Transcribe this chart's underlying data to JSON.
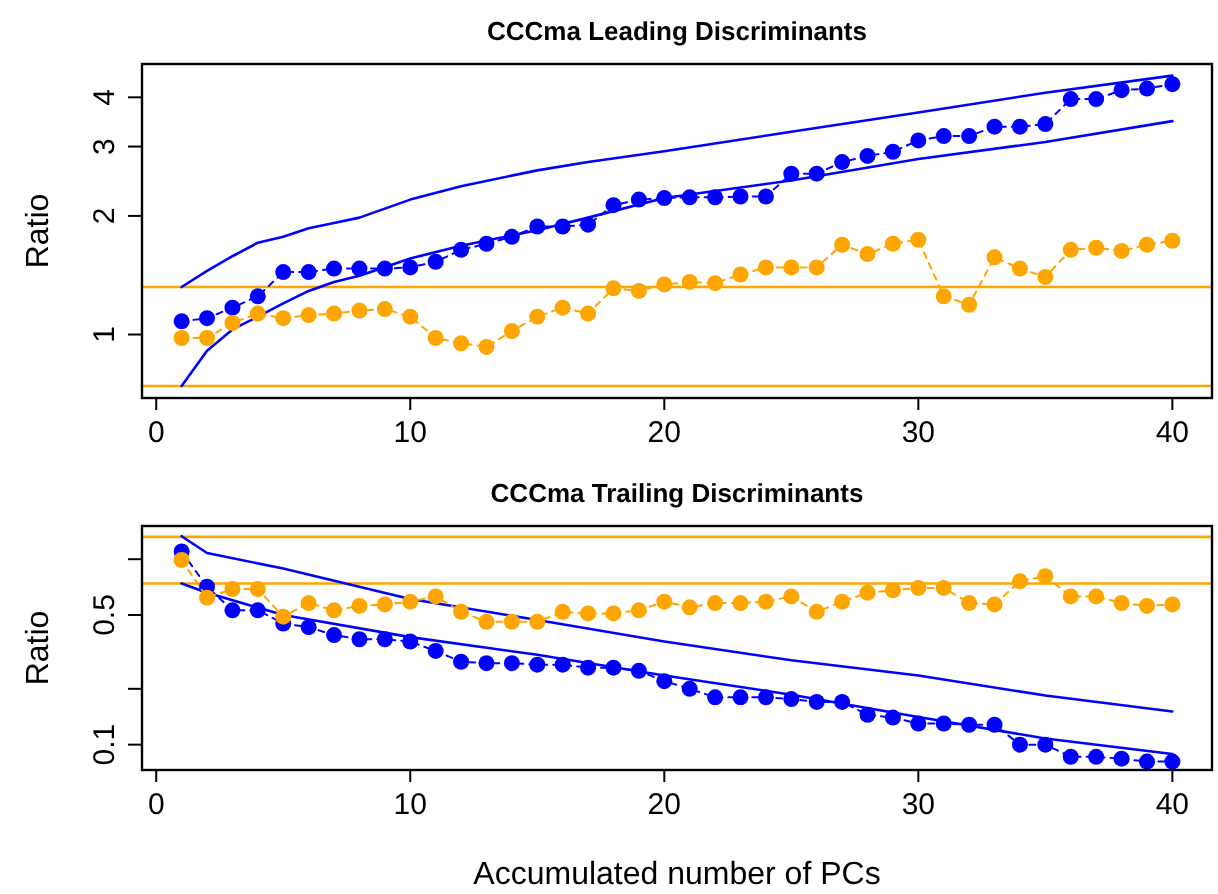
{
  "chart_data": [
    {
      "type": "line",
      "title": "CCCma Leading Discriminants",
      "ylabel": "Ratio",
      "log": "y",
      "grid": false,
      "xlim": [
        -0.56,
        41.56
      ],
      "xticks": [
        0,
        10,
        20,
        30,
        40
      ],
      "ylim": [
        0.69,
        4.86
      ],
      "yticks": [
        1,
        2,
        3,
        4
      ],
      "ref_lines": [
        {
          "axis": "y",
          "value": 1.32,
          "color": "#ffa500"
        },
        {
          "axis": "y",
          "value": 0.74,
          "color": "#ffa500"
        }
      ],
      "series": [
        {
          "color": "#0000ff",
          "marker": "none",
          "line_style": "solid",
          "x": [
            1,
            2,
            3,
            4,
            5,
            6,
            7,
            8,
            10,
            12,
            15,
            17,
            20,
            25,
            30,
            35,
            40
          ],
          "values": [
            1.32,
            1.45,
            1.58,
            1.71,
            1.77,
            1.86,
            1.92,
            1.98,
            2.2,
            2.38,
            2.61,
            2.74,
            2.92,
            3.27,
            3.66,
            4.11,
            4.54
          ]
        },
        {
          "color": "#0000ff",
          "marker": "none",
          "line_style": "solid",
          "x": [
            1,
            2,
            3,
            4,
            5,
            6,
            7,
            8,
            10,
            12,
            15,
            17,
            20,
            25,
            30,
            35,
            40
          ],
          "values": [
            0.74,
            0.91,
            1.03,
            1.11,
            1.2,
            1.29,
            1.36,
            1.41,
            1.56,
            1.68,
            1.84,
            1.98,
            2.22,
            2.46,
            2.79,
            3.08,
            3.48
          ]
        },
        {
          "color": "#0000ff",
          "marker": "circle",
          "line_style": "dashed",
          "x": [
            1,
            2,
            3,
            4,
            5,
            6,
            7,
            8,
            9,
            10,
            11,
            12,
            13,
            14,
            15,
            16,
            17,
            18,
            19,
            20,
            21,
            22,
            23,
            24,
            25,
            26,
            27,
            28,
            29,
            30,
            31,
            32,
            33,
            34,
            35,
            36,
            37,
            38,
            39,
            40
          ],
          "values": [
            1.08,
            1.1,
            1.17,
            1.25,
            1.44,
            1.44,
            1.47,
            1.47,
            1.47,
            1.48,
            1.53,
            1.64,
            1.7,
            1.77,
            1.88,
            1.88,
            1.9,
            2.13,
            2.2,
            2.22,
            2.23,
            2.23,
            2.24,
            2.24,
            2.56,
            2.56,
            2.74,
            2.84,
            2.91,
            3.11,
            3.19,
            3.19,
            3.37,
            3.37,
            3.42,
            3.96,
            3.96,
            4.17,
            4.21,
            4.32
          ]
        },
        {
          "color": "#ffa500",
          "marker": "circle",
          "line_style": "dashed",
          "x": [
            1,
            2,
            3,
            4,
            5,
            6,
            7,
            8,
            9,
            10,
            11,
            12,
            13,
            14,
            15,
            16,
            17,
            18,
            19,
            20,
            21,
            22,
            23,
            24,
            25,
            26,
            27,
            28,
            29,
            30,
            31,
            32,
            33,
            34,
            35,
            36,
            37,
            38,
            39,
            40
          ],
          "values": [
            0.98,
            0.98,
            1.07,
            1.13,
            1.1,
            1.12,
            1.13,
            1.15,
            1.16,
            1.11,
            0.98,
            0.95,
            0.93,
            1.02,
            1.11,
            1.17,
            1.13,
            1.31,
            1.29,
            1.34,
            1.36,
            1.35,
            1.42,
            1.48,
            1.48,
            1.48,
            1.69,
            1.6,
            1.7,
            1.74,
            1.25,
            1.19,
            1.57,
            1.47,
            1.4,
            1.64,
            1.66,
            1.63,
            1.69,
            1.73
          ]
        }
      ]
    },
    {
      "type": "line",
      "title": "CCCma Trailing Discriminants",
      "ylabel": "Ratio",
      "xlabel": "Accumulated number of PCs",
      "log": "y",
      "grid": false,
      "xlim": [
        -0.56,
        41.56
      ],
      "xticks": [
        0,
        10,
        20,
        30,
        40
      ],
      "ylim": [
        0.073,
        1.51
      ],
      "yticks": [
        0.1,
        {
          "value": 0.2,
          "label": null
        },
        0.5,
        {
          "value": 1,
          "label": null
        }
      ],
      "ref_lines": [
        {
          "axis": "y",
          "value": 1.32,
          "color": "#ffa500"
        },
        {
          "axis": "y",
          "value": 0.74,
          "color": "#ffa500"
        }
      ],
      "series": [
        {
          "color": "#0000ff",
          "marker": "none",
          "line_style": "solid",
          "x": [
            1,
            2,
            5,
            10,
            15,
            20,
            25,
            30,
            35,
            40
          ],
          "values": [
            1.33,
            1.08,
            0.89,
            0.61,
            0.47,
            0.36,
            0.285,
            0.236,
            0.184,
            0.151
          ]
        },
        {
          "color": "#0000ff",
          "marker": "none",
          "line_style": "solid",
          "x": [
            1,
            2,
            5,
            10,
            15,
            20,
            25,
            30,
            35,
            40
          ],
          "values": [
            0.74,
            0.66,
            0.5,
            0.38,
            0.305,
            0.236,
            0.186,
            0.141,
            0.108,
            0.089
          ]
        },
        {
          "color": "#0000ff",
          "marker": "circle",
          "line_style": "dashed",
          "x": [
            1,
            2,
            3,
            4,
            5,
            6,
            7,
            8,
            9,
            10,
            11,
            12,
            13,
            14,
            15,
            16,
            17,
            18,
            19,
            20,
            21,
            22,
            23,
            24,
            25,
            26,
            27,
            28,
            29,
            30,
            31,
            32,
            33,
            34,
            35,
            36,
            37,
            38,
            39,
            40
          ],
          "values": [
            1.1,
            0.71,
            0.53,
            0.53,
            0.45,
            0.43,
            0.39,
            0.37,
            0.37,
            0.36,
            0.32,
            0.28,
            0.275,
            0.275,
            0.27,
            0.27,
            0.26,
            0.26,
            0.25,
            0.22,
            0.2,
            0.18,
            0.18,
            0.18,
            0.176,
            0.17,
            0.17,
            0.145,
            0.14,
            0.13,
            0.13,
            0.128,
            0.128,
            0.1,
            0.1,
            0.086,
            0.086,
            0.084,
            0.081,
            0.081
          ]
        },
        {
          "color": "#ffa500",
          "marker": "circle",
          "line_style": "dashed",
          "x": [
            1,
            2,
            3,
            4,
            5,
            6,
            7,
            8,
            9,
            10,
            11,
            12,
            13,
            14,
            15,
            16,
            17,
            18,
            19,
            20,
            21,
            22,
            23,
            24,
            25,
            26,
            27,
            28,
            29,
            30,
            31,
            32,
            33,
            34,
            35,
            36,
            37,
            38,
            39,
            40
          ],
          "values": [
            0.99,
            0.62,
            0.69,
            0.69,
            0.49,
            0.58,
            0.53,
            0.56,
            0.57,
            0.59,
            0.63,
            0.52,
            0.46,
            0.46,
            0.46,
            0.52,
            0.51,
            0.51,
            0.53,
            0.59,
            0.55,
            0.58,
            0.58,
            0.59,
            0.63,
            0.52,
            0.59,
            0.66,
            0.68,
            0.7,
            0.7,
            0.58,
            0.57,
            0.76,
            0.81,
            0.63,
            0.63,
            0.58,
            0.56,
            0.57
          ]
        }
      ]
    }
  ]
}
